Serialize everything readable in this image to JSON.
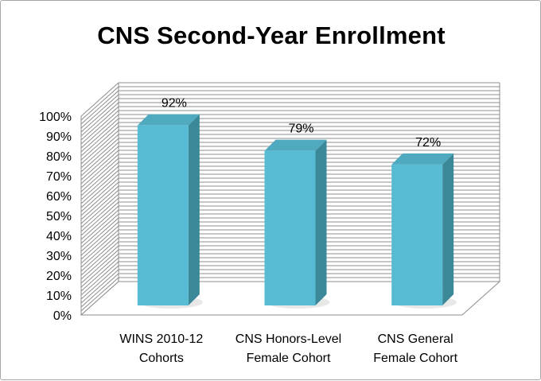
{
  "chart_data": {
    "type": "bar",
    "title": "CNS Second-Year Enrollment",
    "xlabel": "",
    "ylabel": "",
    "categories": [
      [
        "WINS 2010-12",
        "Cohorts"
      ],
      [
        "CNS Honors-Level",
        "Female Cohort"
      ],
      [
        "CNS General",
        "Female Cohort"
      ]
    ],
    "values": [
      92,
      79,
      72
    ],
    "data_labels": [
      "92%",
      "79%",
      "72%"
    ],
    "ylim": [
      0,
      100
    ],
    "yticks": [
      "0%",
      "10%",
      "20%",
      "30%",
      "40%",
      "50%",
      "60%",
      "70%",
      "80%",
      "90%",
      "100%"
    ],
    "grid": true,
    "style": "3d-column",
    "colors": {
      "front": "#58BBD4",
      "side": "#3A8898",
      "top": "#4FA9BF",
      "grid": "#8c8c8c"
    }
  }
}
